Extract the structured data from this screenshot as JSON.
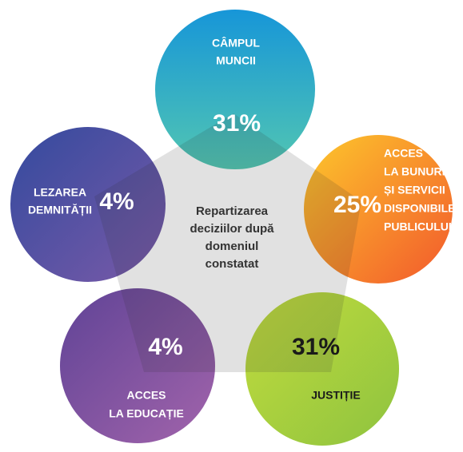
{
  "center": {
    "lines": [
      "Repartizarea",
      "deciziilor după",
      "domeniul",
      "constatat"
    ]
  },
  "nodes": [
    {
      "label": [
        "CÂMPUL",
        "MUNCII"
      ],
      "value": "31%"
    },
    {
      "label": [
        "ACCES",
        "LA BUNURI",
        "ȘI SERVICII",
        "DISPONIBILE",
        "PUBLICULUI"
      ],
      "value": "25%"
    },
    {
      "label": [
        "JUSTIȚIE"
      ],
      "value": "31%"
    },
    {
      "label": [
        "ACCES",
        "LA EDUCAȚIE"
      ],
      "value": "4%"
    },
    {
      "label": [
        "LEZAREA",
        "DEMNITĂȚII"
      ],
      "value": "4%"
    }
  ]
}
